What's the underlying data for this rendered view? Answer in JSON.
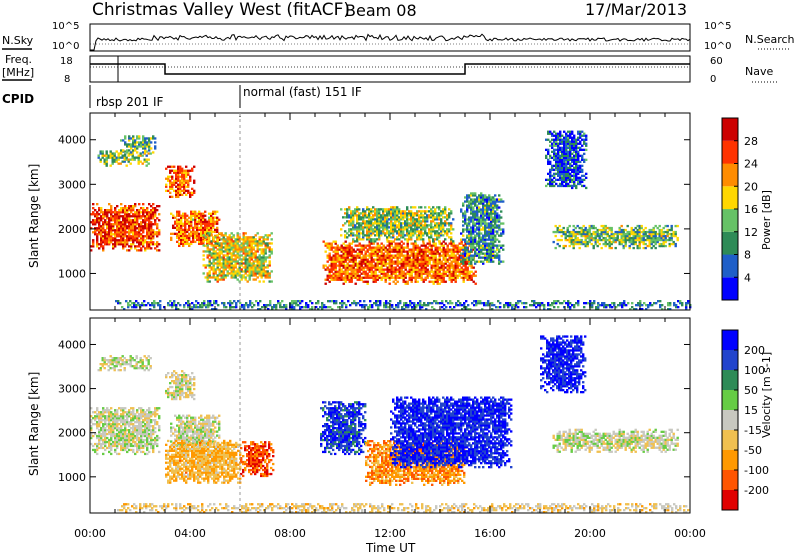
{
  "header": {
    "title": "Christmas Valley West (fitACF)",
    "beam": "Beam 08",
    "date": "17/Mar/2013"
  },
  "strips": {
    "nsky_label": "N.Sky",
    "nsky_ticks": [
      "10^5",
      "10^0"
    ],
    "nsearch_label": "N.Search",
    "nsearch_ticks": [
      "10^5",
      "10^0"
    ],
    "freq_label_1": "Freq.",
    "freq_label_2": "[MHz]",
    "freq_ticks": [
      "18",
      "8"
    ],
    "nave_label": "Nave",
    "nave_ticks": [
      "60",
      "0"
    ],
    "cpid_label": "CPID",
    "cpid_modes": [
      {
        "label": "rbsp 201 IF",
        "start_hour": 1.0
      },
      {
        "label": "normal (fast) 151 IF",
        "start_hour": 6.0
      }
    ]
  },
  "chart_data": [
    {
      "type": "heatmap",
      "panel": "power",
      "xlabel": "Time UT",
      "ylabel": "Slant Range [km]",
      "xlim": [
        0,
        24
      ],
      "ylim": [
        180,
        4600
      ],
      "xticks": [
        "00:00",
        "04:00",
        "08:00",
        "12:00",
        "16:00",
        "20:00",
        "00:00"
      ],
      "yticks": [
        1000,
        2000,
        3000,
        4000
      ],
      "colorbar": {
        "label": "Power [dB]",
        "ticks": [
          4,
          8,
          12,
          16,
          20,
          24,
          28
        ],
        "range": [
          0,
          30
        ],
        "colors": [
          "#0000ff",
          "#1f5fc8",
          "#2e8b57",
          "#66c266",
          "#ffd700",
          "#ff8c00",
          "#ff3300",
          "#cc0000"
        ]
      },
      "regions": [
        {
          "t": [
            0.0,
            2.8
          ],
          "r": [
            1500,
            2550
          ],
          "level": 0.82
        },
        {
          "t": [
            0.3,
            2.4
          ],
          "r": [
            3400,
            3750
          ],
          "level": 0.45
        },
        {
          "t": [
            1.2,
            2.6
          ],
          "r": [
            3650,
            4100
          ],
          "level": 0.38
        },
        {
          "t": [
            3.0,
            4.2
          ],
          "r": [
            2700,
            3400
          ],
          "level": 0.78
        },
        {
          "t": [
            3.2,
            5.2
          ],
          "r": [
            1600,
            2400
          ],
          "level": 0.72
        },
        {
          "t": [
            4.5,
            7.3
          ],
          "r": [
            800,
            1900
          ],
          "level": 0.55
        },
        {
          "t": [
            9.3,
            15.4
          ],
          "r": [
            750,
            1700
          ],
          "level": 0.76
        },
        {
          "t": [
            10.0,
            14.5
          ],
          "r": [
            1700,
            2500
          ],
          "level": 0.45
        },
        {
          "t": [
            14.8,
            16.5
          ],
          "r": [
            1200,
            2800
          ],
          "level": 0.3
        },
        {
          "t": [
            18.2,
            19.8
          ],
          "r": [
            2900,
            4200
          ],
          "level": 0.18
        },
        {
          "t": [
            18.5,
            23.5
          ],
          "r": [
            1550,
            2050
          ],
          "level": 0.42
        },
        {
          "t": [
            1.0,
            24.0
          ],
          "r": [
            180,
            380
          ],
          "level": 0.25
        }
      ]
    },
    {
      "type": "heatmap",
      "panel": "velocity",
      "xlabel": "Time UT",
      "ylabel": "Slant Range [km]",
      "xlim": [
        0,
        24
      ],
      "ylim": [
        180,
        4600
      ],
      "xticks": [
        "00:00",
        "04:00",
        "08:00",
        "12:00",
        "16:00",
        "20:00",
        "00:00"
      ],
      "yticks": [
        1000,
        2000,
        3000,
        4000
      ],
      "colorbar": {
        "label": "Velocity [m s-1]",
        "ticks": [
          200,
          100,
          50,
          15,
          -15,
          -50,
          -100,
          -200
        ],
        "range": [
          -250,
          250
        ],
        "colors": [
          "#e00000",
          "#ff5500",
          "#ff9900",
          "#f0c050",
          "#c8c8c0",
          "#66cc44",
          "#2e8b57",
          "#2244cc",
          "#0000ff"
        ]
      },
      "regions": [
        {
          "t": [
            0.0,
            2.8
          ],
          "r": [
            1500,
            2550
          ],
          "value": 0
        },
        {
          "t": [
            0.3,
            2.4
          ],
          "r": [
            3400,
            3750
          ],
          "value": 0
        },
        {
          "t": [
            3.0,
            4.2
          ],
          "r": [
            2700,
            3400
          ],
          "value": 0
        },
        {
          "t": [
            3.2,
            5.2
          ],
          "r": [
            1600,
            2400
          ],
          "value": 0
        },
        {
          "t": [
            3.0,
            6.0
          ],
          "r": [
            850,
            1800
          ],
          "value": -80
        },
        {
          "t": [
            6.0,
            7.3
          ],
          "r": [
            1000,
            1800
          ],
          "value": -180
        },
        {
          "t": [
            9.2,
            11.0
          ],
          "r": [
            1500,
            2700
          ],
          "value": 180
        },
        {
          "t": [
            11.0,
            15.0
          ],
          "r": [
            800,
            1800
          ],
          "value": -120
        },
        {
          "t": [
            12.0,
            16.8
          ],
          "r": [
            1200,
            2800
          ],
          "value": 200
        },
        {
          "t": [
            18.0,
            19.8
          ],
          "r": [
            2900,
            4200
          ],
          "value": 200
        },
        {
          "t": [
            18.5,
            23.5
          ],
          "r": [
            1550,
            2050
          ],
          "value": 0
        },
        {
          "t": [
            1.0,
            24.0
          ],
          "r": [
            180,
            380
          ],
          "value": -40
        }
      ]
    }
  ]
}
